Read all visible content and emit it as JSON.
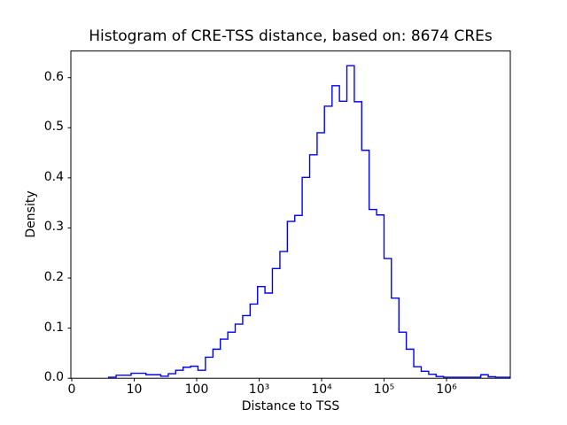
{
  "window": {
    "background": "#ffffff"
  },
  "chart_data": {
    "type": "histogram-step",
    "title": "Histogram of CRE-TSS distance, based on: 8674 CREs",
    "xlabel": "Distance to TSS",
    "ylabel": "Density",
    "x_scale": "symlog",
    "grid": false,
    "legend": "none",
    "line_color": "#0000ff",
    "axis_color": "#000000",
    "ylim": [
      0,
      0.653
    ],
    "xlim": [
      0,
      10600000
    ],
    "x_ticks": [
      {
        "value": 0,
        "label": "0"
      },
      {
        "value": 10,
        "label": "10"
      },
      {
        "value": 100,
        "label": "100"
      },
      {
        "value": 1000,
        "label": "10³"
      },
      {
        "value": 10000,
        "label": "10⁴"
      },
      {
        "value": 100000,
        "label": "10⁵"
      },
      {
        "value": 1000000,
        "label": "10⁶"
      }
    ],
    "y_ticks": [
      {
        "value": 0.0,
        "label": "0.0"
      },
      {
        "value": 0.1,
        "label": "0.1"
      },
      {
        "value": 0.2,
        "label": "0.2"
      },
      {
        "value": 0.3,
        "label": "0.3"
      },
      {
        "value": 0.4,
        "label": "0.4"
      },
      {
        "value": 0.5,
        "label": "0.5"
      },
      {
        "value": 0.6,
        "label": "0.6"
      }
    ],
    "bin_edges": [
      5.9,
      7.1,
      8.3,
      9.5,
      11.7,
      15.4,
      20.2,
      26.6,
      35.1,
      46.1,
      60.7,
      79.8,
      105,
      138,
      182,
      239,
      315,
      414,
      545,
      717,
      944,
      1240,
      1630,
      2150,
      2830,
      3720,
      4890,
      6440,
      8470,
      11100,
      14700,
      19300,
      25400,
      33400,
      43900,
      57700,
      76000,
      99900,
      131000,
      173000,
      227000,
      299000,
      394000,
      518000,
      681000,
      896000,
      1180000,
      1550000,
      2040000,
      2680000,
      3530000,
      4650000,
      6110000,
      8040000,
      10600000
    ],
    "densities": [
      0.002,
      0.006,
      0.006,
      0.01,
      0.01,
      0.007,
      0.007,
      0.004,
      0.009,
      0.016,
      0.022,
      0.024,
      0.016,
      0.042,
      0.058,
      0.078,
      0.092,
      0.108,
      0.125,
      0.148,
      0.183,
      0.17,
      0.219,
      0.253,
      0.313,
      0.325,
      0.401,
      0.446,
      0.49,
      0.543,
      0.584,
      0.553,
      0.624,
      0.552,
      0.455,
      0.337,
      0.326,
      0.239,
      0.16,
      0.092,
      0.058,
      0.023,
      0.014,
      0.008,
      0.0035,
      0.002,
      0.002,
      0.002,
      0.002,
      0.002,
      0.007,
      0.003,
      0.002,
      0.002
    ]
  }
}
